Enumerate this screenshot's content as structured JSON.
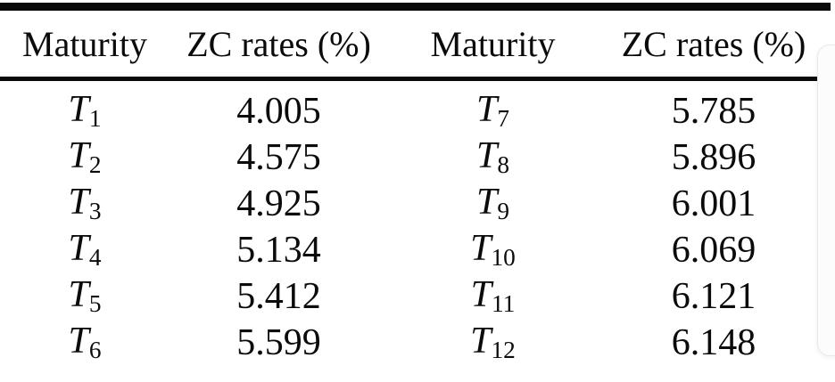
{
  "table": {
    "headers": [
      "Maturity",
      "ZC rates (%)",
      "Maturity",
      "ZC rates (%)"
    ],
    "rows": [
      {
        "m1": "T",
        "m1s": "1",
        "r1": "4.005",
        "m2": "T",
        "m2s": "7",
        "r2": "5.785"
      },
      {
        "m1": "T",
        "m1s": "2",
        "r1": "4.575",
        "m2": "T",
        "m2s": "8",
        "r2": "5.896"
      },
      {
        "m1": "T",
        "m1s": "3",
        "r1": "4.925",
        "m2": "T",
        "m2s": "9",
        "r2": "6.001"
      },
      {
        "m1": "T",
        "m1s": "4",
        "r1": "5.134",
        "m2": "T",
        "m2s": "10",
        "r2": "6.069"
      },
      {
        "m1": "T",
        "m1s": "5",
        "r1": "5.412",
        "m2": "T",
        "m2s": "11",
        "r2": "6.121"
      },
      {
        "m1": "T",
        "m1s": "6",
        "r1": "5.599",
        "m2": "T",
        "m2s": "12",
        "r2": "6.148"
      }
    ]
  },
  "chart_data": {
    "type": "table",
    "columns": [
      "Maturity",
      "ZC rates (%)"
    ],
    "maturities": [
      "T1",
      "T2",
      "T3",
      "T4",
      "T5",
      "T6",
      "T7",
      "T8",
      "T9",
      "T10",
      "T11",
      "T12"
    ],
    "zc_rates": [
      4.005,
      4.575,
      4.925,
      5.134,
      5.412,
      5.599,
      5.785,
      5.896,
      6.001,
      6.069,
      6.121,
      6.148
    ]
  },
  "colors": {
    "rule": "#0a0a0a",
    "text": "#0b0b0d",
    "card_bg": "#fcfcfd",
    "card_border": "#e7e8ea"
  }
}
